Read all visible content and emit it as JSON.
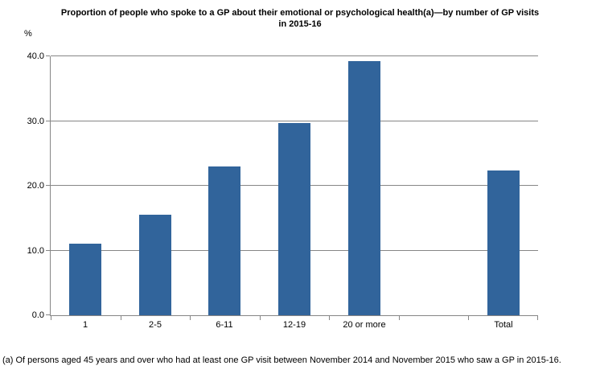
{
  "title": {
    "lines": [
      "Proportion of people who spoke to a GP about their emotional or psychological health(a)—by number of GP visits",
      "in 2015-16"
    ]
  },
  "footnote": "(a) Of persons aged 45 years and over who had at least one GP visit between November 2014 and November 2015 who saw a GP in 2015-16.",
  "chart_data": {
    "type": "bar",
    "title": "Proportion of people who spoke to a GP about their emotional or psychological health(a)—by number of GP visits in 2015-16",
    "categories": [
      "1",
      "2-5",
      "6-11",
      "12-19",
      "20 or more",
      "Total"
    ],
    "values": [
      11.1,
      15.5,
      23.0,
      29.7,
      39.3,
      22.4
    ],
    "xlabel": "",
    "ylabel": "%",
    "ylim": [
      0,
      40
    ],
    "yticks": [
      0,
      10,
      20,
      30,
      40
    ],
    "ytick_labels": [
      "0.0",
      "10.0",
      "20.0",
      "30.0",
      "40.0"
    ],
    "grid": true,
    "legend": "none",
    "n_slots": 7,
    "slot_indices": [
      0,
      1,
      2,
      3,
      4,
      6
    ],
    "bar_color": "#31649B",
    "axis_color": "#868686",
    "text_color": "#000000"
  }
}
